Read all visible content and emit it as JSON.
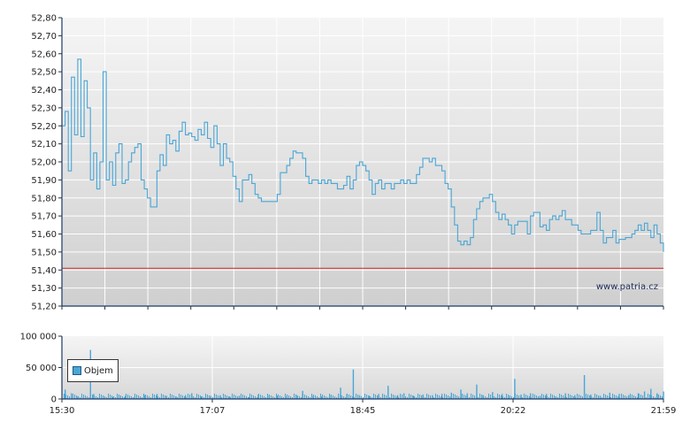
{
  "chart_data": [
    {
      "type": "line",
      "title": "",
      "xlabel": "",
      "ylabel": "",
      "ylim": [
        51.2,
        52.8
      ],
      "y_ticks": [
        "52,80",
        "52,70",
        "52,60",
        "52,50",
        "52,40",
        "52,30",
        "52,20",
        "52,10",
        "52,00",
        "51,90",
        "51,80",
        "51,70",
        "51,60",
        "51,50",
        "51,40",
        "51,30",
        "51,20"
      ],
      "reference_line": {
        "value": 51.41,
        "color": "#cc2222"
      },
      "watermark": "www.patria.cz",
      "line_color": "#4aa6d6",
      "grid": true,
      "series": [
        {
          "points": [
            [
              0,
              52.2
            ],
            [
              1,
              52.28
            ],
            [
              2,
              51.95
            ],
            [
              3,
              52.47
            ],
            [
              4,
              52.15
            ],
            [
              5,
              52.57
            ],
            [
              6,
              52.14
            ],
            [
              7,
              52.45
            ],
            [
              8,
              52.3
            ],
            [
              9,
              51.9
            ],
            [
              10,
              52.05
            ],
            [
              11,
              51.85
            ],
            [
              12,
              52.0
            ],
            [
              13,
              52.5
            ],
            [
              14,
              51.9
            ],
            [
              15,
              52.0
            ],
            [
              16,
              51.87
            ],
            [
              17,
              52.05
            ],
            [
              18,
              52.1
            ],
            [
              19,
              51.88
            ],
            [
              20,
              51.9
            ],
            [
              21,
              52.0
            ],
            [
              22,
              52.05
            ],
            [
              23,
              52.08
            ],
            [
              24,
              52.1
            ],
            [
              25,
              51.9
            ],
            [
              26,
              51.85
            ],
            [
              27,
              51.8
            ],
            [
              28,
              51.75
            ],
            [
              29,
              51.75
            ],
            [
              30,
              51.95
            ],
            [
              31,
              52.04
            ],
            [
              32,
              51.98
            ],
            [
              33,
              52.15
            ],
            [
              34,
              52.1
            ],
            [
              35,
              52.12
            ],
            [
              36,
              52.06
            ],
            [
              37,
              52.17
            ],
            [
              38,
              52.22
            ],
            [
              39,
              52.15
            ],
            [
              40,
              52.16
            ],
            [
              41,
              52.14
            ],
            [
              42,
              52.12
            ],
            [
              43,
              52.18
            ],
            [
              44,
              52.15
            ],
            [
              45,
              52.22
            ],
            [
              46,
              52.13
            ],
            [
              47,
              52.08
            ],
            [
              48,
              52.2
            ],
            [
              49,
              52.1
            ],
            [
              50,
              51.98
            ],
            [
              51,
              52.1
            ],
            [
              52,
              52.02
            ],
            [
              53,
              52.0
            ],
            [
              54,
              51.92
            ],
            [
              55,
              51.85
            ],
            [
              56,
              51.78
            ],
            [
              57,
              51.9
            ],
            [
              58,
              51.9
            ],
            [
              59,
              51.93
            ],
            [
              60,
              51.88
            ],
            [
              61,
              51.82
            ],
            [
              62,
              51.8
            ],
            [
              63,
              51.78
            ],
            [
              64,
              51.78
            ],
            [
              65,
              51.78
            ],
            [
              66,
              51.78
            ],
            [
              67,
              51.78
            ],
            [
              68,
              51.82
            ],
            [
              69,
              51.94
            ],
            [
              70,
              51.94
            ],
            [
              71,
              51.98
            ],
            [
              72,
              52.02
            ],
            [
              73,
              52.06
            ],
            [
              74,
              52.05
            ],
            [
              75,
              52.05
            ],
            [
              76,
              52.02
            ],
            [
              77,
              51.92
            ],
            [
              78,
              51.88
            ],
            [
              79,
              51.9
            ],
            [
              80,
              51.9
            ],
            [
              81,
              51.88
            ],
            [
              82,
              51.9
            ],
            [
              83,
              51.88
            ],
            [
              84,
              51.9
            ],
            [
              85,
              51.88
            ],
            [
              86,
              51.88
            ],
            [
              87,
              51.85
            ],
            [
              88,
              51.85
            ],
            [
              89,
              51.87
            ],
            [
              90,
              51.92
            ],
            [
              91,
              51.85
            ],
            [
              92,
              51.9
            ],
            [
              93,
              51.98
            ],
            [
              94,
              52.0
            ],
            [
              95,
              51.98
            ],
            [
              96,
              51.95
            ],
            [
              97,
              51.9
            ],
            [
              98,
              51.82
            ],
            [
              99,
              51.88
            ],
            [
              100,
              51.9
            ],
            [
              101,
              51.85
            ],
            [
              102,
              51.88
            ],
            [
              103,
              51.88
            ],
            [
              104,
              51.85
            ],
            [
              105,
              51.88
            ],
            [
              106,
              51.88
            ],
            [
              107,
              51.9
            ],
            [
              108,
              51.88
            ],
            [
              109,
              51.9
            ],
            [
              110,
              51.88
            ],
            [
              111,
              51.88
            ],
            [
              112,
              51.93
            ],
            [
              113,
              51.97
            ],
            [
              114,
              52.02
            ],
            [
              115,
              52.02
            ],
            [
              116,
              52.0
            ],
            [
              117,
              52.02
            ],
            [
              118,
              51.98
            ],
            [
              119,
              51.98
            ],
            [
              120,
              51.95
            ],
            [
              121,
              51.88
            ],
            [
              122,
              51.85
            ],
            [
              123,
              51.75
            ],
            [
              124,
              51.65
            ],
            [
              125,
              51.56
            ],
            [
              126,
              51.54
            ],
            [
              127,
              51.56
            ],
            [
              128,
              51.54
            ],
            [
              129,
              51.58
            ],
            [
              130,
              51.68
            ],
            [
              131,
              51.74
            ],
            [
              132,
              51.78
            ],
            [
              133,
              51.8
            ],
            [
              134,
              51.8
            ],
            [
              135,
              51.82
            ],
            [
              136,
              51.78
            ],
            [
              137,
              51.72
            ],
            [
              138,
              51.68
            ],
            [
              139,
              51.71
            ],
            [
              140,
              51.68
            ],
            [
              141,
              51.65
            ],
            [
              142,
              51.6
            ],
            [
              143,
              51.65
            ],
            [
              144,
              51.67
            ],
            [
              145,
              51.67
            ],
            [
              146,
              51.67
            ],
            [
              147,
              51.6
            ],
            [
              148,
              51.7
            ],
            [
              149,
              51.72
            ],
            [
              150,
              51.72
            ],
            [
              151,
              51.64
            ],
            [
              152,
              51.65
            ],
            [
              153,
              51.62
            ],
            [
              154,
              51.68
            ],
            [
              155,
              51.7
            ],
            [
              156,
              51.68
            ],
            [
              157,
              51.7
            ],
            [
              158,
              51.73
            ],
            [
              159,
              51.68
            ],
            [
              160,
              51.68
            ],
            [
              161,
              51.65
            ],
            [
              162,
              51.65
            ],
            [
              163,
              51.62
            ],
            [
              164,
              51.6
            ],
            [
              165,
              51.6
            ],
            [
              166,
              51.6
            ],
            [
              167,
              51.62
            ],
            [
              168,
              51.62
            ],
            [
              169,
              51.72
            ],
            [
              170,
              51.62
            ],
            [
              171,
              51.55
            ],
            [
              172,
              51.58
            ],
            [
              173,
              51.58
            ],
            [
              174,
              51.62
            ],
            [
              175,
              51.55
            ],
            [
              176,
              51.57
            ],
            [
              177,
              51.57
            ],
            [
              178,
              51.58
            ],
            [
              179,
              51.58
            ],
            [
              180,
              51.6
            ],
            [
              181,
              51.62
            ],
            [
              182,
              51.65
            ],
            [
              183,
              51.62
            ],
            [
              184,
              51.66
            ],
            [
              185,
              51.62
            ],
            [
              186,
              51.58
            ],
            [
              187,
              51.65
            ],
            [
              188,
              51.6
            ],
            [
              189,
              51.55
            ],
            [
              190,
              51.5
            ]
          ]
        }
      ],
      "x_domain": [
        0,
        190
      ],
      "x_ticks": [
        {
          "x": 0,
          "label": "15:30"
        },
        {
          "x": 47.5,
          "label": "17:07"
        },
        {
          "x": 95,
          "label": "18:45"
        },
        {
          "x": 142.5,
          "label": "20:22"
        },
        {
          "x": 190,
          "label": "21:59"
        }
      ]
    },
    {
      "type": "bar",
      "title": "",
      "ylim": [
        0,
        100000
      ],
      "y_ticks": [
        "100 000",
        "50 000",
        "0"
      ],
      "legend_label": "Objem",
      "legend_position": "top-left",
      "bar_color": "#4aa6d6",
      "grid": true,
      "x_domain": [
        0,
        190
      ],
      "x_ticks": [
        {
          "x": 0,
          "label": "15:30"
        },
        {
          "x": 47.5,
          "label": "17:07"
        },
        {
          "x": 95,
          "label": "18:45"
        },
        {
          "x": 142.5,
          "label": "20:22"
        },
        {
          "x": 190,
          "label": "21:59"
        }
      ],
      "series": [
        {
          "points": [
            [
              1,
              15000
            ],
            [
              3,
              9000
            ],
            [
              5,
              4000
            ],
            [
              9,
              78000
            ],
            [
              10,
              8000
            ],
            [
              13,
              5000
            ],
            [
              16,
              3000
            ],
            [
              18,
              6000
            ],
            [
              20,
              5000
            ],
            [
              23,
              4000
            ],
            [
              26,
              6000
            ],
            [
              30,
              8000
            ],
            [
              33,
              5000
            ],
            [
              36,
              4000
            ],
            [
              39,
              6000
            ],
            [
              41,
              9000
            ],
            [
              44,
              4000
            ],
            [
              47,
              5000
            ],
            [
              50,
              6000
            ],
            [
              53,
              4000
            ],
            [
              56,
              5000
            ],
            [
              59,
              3000
            ],
            [
              62,
              7000
            ],
            [
              65,
              6000
            ],
            [
              68,
              5000
            ],
            [
              71,
              4000
            ],
            [
              74,
              6000
            ],
            [
              76,
              13000
            ],
            [
              79,
              5000
            ],
            [
              82,
              4000
            ],
            [
              85,
              6000
            ],
            [
              88,
              18000
            ],
            [
              90,
              8000
            ],
            [
              92,
              47000
            ],
            [
              94,
              6000
            ],
            [
              97,
              5000
            ],
            [
              100,
              8000
            ],
            [
              103,
              21000
            ],
            [
              106,
              6000
            ],
            [
              108,
              9000
            ],
            [
              111,
              5000
            ],
            [
              114,
              7000
            ],
            [
              117,
              6000
            ],
            [
              120,
              8000
            ],
            [
              123,
              10000
            ],
            [
              126,
              15000
            ],
            [
              128,
              9000
            ],
            [
              131,
              23000
            ],
            [
              133,
              6000
            ],
            [
              136,
              11000
            ],
            [
              139,
              8000
            ],
            [
              141,
              5000
            ],
            [
              143,
              32000
            ],
            [
              145,
              7000
            ],
            [
              148,
              9000
            ],
            [
              151,
              5000
            ],
            [
              153,
              8000
            ],
            [
              156,
              4000
            ],
            [
              159,
              9000
            ],
            [
              162,
              6000
            ],
            [
              165,
              38000
            ],
            [
              167,
              7000
            ],
            [
              170,
              5000
            ],
            [
              173,
              10000
            ],
            [
              176,
              8000
            ],
            [
              179,
              6000
            ],
            [
              182,
              9000
            ],
            [
              184,
              12000
            ],
            [
              186,
              16000
            ],
            [
              188,
              9000
            ],
            [
              190,
              12000
            ]
          ]
        }
      ]
    }
  ]
}
